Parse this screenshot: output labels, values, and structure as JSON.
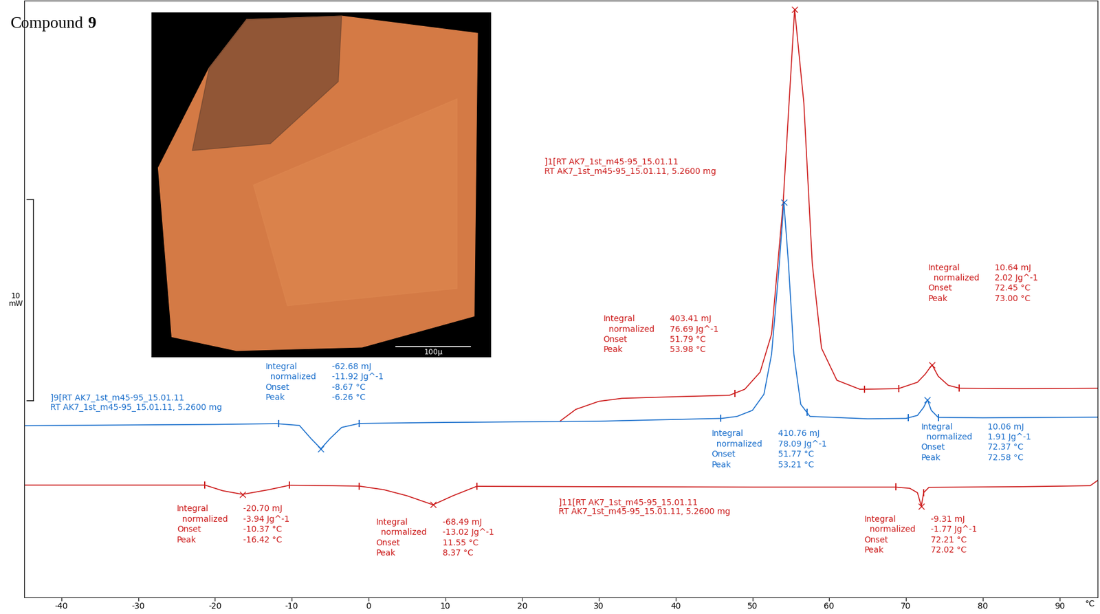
{
  "chart_data": {
    "type": "line",
    "title": "Compound 9",
    "xlabel": "°C",
    "xlim": [
      -44.8,
      95
    ],
    "xticks": [
      -40,
      -30,
      -20,
      -10,
      0,
      10,
      20,
      30,
      40,
      50,
      60,
      70,
      80,
      90
    ],
    "ylim": [
      -4.6,
      25.1
    ],
    "tick_labels": "x",
    "scale_bar": {
      "value": 10,
      "label": "10\nmW"
    },
    "image": {
      "scale_bar_label": "100µ"
    },
    "series": [
      {
        "name": "]1[RT AK7_1st_m45-95_15.01.11\nRT AK7_1st_m45-95_15.01.11, 5.2600 mg",
        "color": "#cc1a1a",
        "x": [
          25,
          27,
          30,
          33,
          40,
          47,
          49,
          51,
          52.5,
          54,
          55.5,
          56.7,
          57.8,
          59,
          61,
          64,
          69,
          71.5,
          72.5,
          73.4,
          74.2,
          75.5,
          77,
          85,
          95
        ],
        "values": [
          4.18,
          4.75,
          5.15,
          5.3,
          5.38,
          5.45,
          5.75,
          6.6,
          8.5,
          15.0,
          24.67,
          20.0,
          12.0,
          7.8,
          6.2,
          5.75,
          5.78,
          6.1,
          6.5,
          6.97,
          6.4,
          5.95,
          5.8,
          5.78,
          5.8
        ],
        "peaks": [
          {
            "limits": [
              47.7,
              64.6
            ],
            "rows": [
              [
                "Integral",
                "403.41 mJ"
              ],
              [
                "  normalized",
                "76.69 Jg^-1"
              ],
              [
                "Onset",
                "51.79 °C"
              ],
              [
                "Peak",
                "53.98 °C"
              ]
            ]
          },
          {
            "limits": [
              69.1,
              76.9
            ],
            "rows": [
              [
                "Integral",
                "10.64 mJ"
              ],
              [
                "  normalized",
                "2.02 Jg^-1"
              ],
              [
                "Onset",
                "72.45 °C"
              ],
              [
                "Peak",
                "73.00 °C"
              ]
            ]
          }
        ]
      },
      {
        "name": "]9[RT AK7_1st_m45-95_15.01.11\nRT AK7_1st_m45-95_15.01.11, 5.2600 mg",
        "color": "#1a6fcc",
        "x": [
          -44.8,
          -20,
          -12,
          -9,
          -7.5,
          -6.2,
          -5,
          -3.5,
          -1.2,
          10,
          30,
          40,
          46,
          48,
          50,
          51.5,
          52.5,
          53.4,
          54.1,
          54.7,
          55.4,
          56.3,
          57.5,
          65,
          70,
          71.5,
          72.3,
          72.8,
          73.3,
          74.2,
          80,
          95
        ],
        "values": [
          3.94,
          4.0,
          4.04,
          3.95,
          3.3,
          2.79,
          3.3,
          3.85,
          4.05,
          4.1,
          4.16,
          4.25,
          4.3,
          4.4,
          4.7,
          5.5,
          7.5,
          11.5,
          15.05,
          12.0,
          7.5,
          5.0,
          4.4,
          4.28,
          4.3,
          4.45,
          4.85,
          5.23,
          4.7,
          4.35,
          4.33,
          4.36
        ],
        "peaks": [
          {
            "limits": [
              -11.7,
              -1.2
            ],
            "rows": [
              [
                "Integral",
                "-62.68 mJ"
              ],
              [
                "  normalized",
                "-11.92 Jg^-1"
              ],
              [
                "Onset",
                "-8.67 °C"
              ],
              [
                "Peak",
                "-6.26 °C"
              ]
            ]
          },
          {
            "limits": [
              45.9,
              57.1
            ],
            "rows": [
              [
                "Integral",
                "410.76 mJ"
              ],
              [
                "  normalized",
                "78.09 Jg^-1"
              ],
              [
                "Onset",
                "51.77 °C"
              ],
              [
                "Peak",
                "53.21 °C"
              ]
            ]
          },
          {
            "limits": [
              70.3,
              74.2
            ],
            "rows": [
              [
                "Integral",
                "10.06 mJ"
              ],
              [
                "  normalized",
                "1.91 Jg^-1"
              ],
              [
                "Onset",
                "72.37 °C"
              ],
              [
                "Peak",
                "72.58 °C"
              ]
            ]
          }
        ]
      },
      {
        "name": "]11[RT AK7_1st_m45-95_15.01.11\nRT AK7_1st_m45-95_15.01.11, 5.2600 mg",
        "color": "#cc1a1a",
        "x": [
          -44.8,
          -30,
          -21.3,
          -19,
          -16.4,
          -13,
          -10.3,
          -5,
          -1.2,
          2,
          5,
          8.4,
          11,
          14.1,
          30,
          50,
          65,
          68.7,
          70.5,
          71.5,
          72.0,
          72.3,
          73,
          85,
          94,
          95
        ],
        "values": [
          0.98,
          0.98,
          0.98,
          0.7,
          0.52,
          0.75,
          0.97,
          0.95,
          0.93,
          0.75,
          0.45,
          0.0,
          0.45,
          0.92,
          0.9,
          0.88,
          0.88,
          0.88,
          0.82,
          0.6,
          -0.07,
          0.6,
          0.87,
          0.9,
          0.95,
          1.22
        ],
        "peaks": [
          {
            "limits": [
              -21.3,
              -10.3
            ],
            "rows": [
              [
                "Integral",
                "-20.70 mJ"
              ],
              [
                "  normalized",
                "-3.94 Jg^-1"
              ],
              [
                "Onset",
                "-10.37 °C"
              ],
              [
                "Peak",
                "-16.42 °C"
              ]
            ]
          },
          {
            "limits": [
              -1.2,
              14.1
            ],
            "rows": [
              [
                "Integral",
                "-68.49 mJ"
              ],
              [
                "  normalized",
                "-13.02 Jg^-1"
              ],
              [
                "Onset",
                "11.55 °C"
              ],
              [
                "Peak",
                "8.37 °C"
              ]
            ]
          },
          {
            "limits": [
              68.7,
              72.3
            ],
            "rows": [
              [
                "Integral",
                "-9.31 mJ"
              ],
              [
                "  normalized",
                "-1.77 Jg^-1"
              ],
              [
                "Onset",
                "72.21 °C"
              ],
              [
                "Peak",
                "72.02 °C"
              ]
            ]
          }
        ]
      }
    ]
  }
}
